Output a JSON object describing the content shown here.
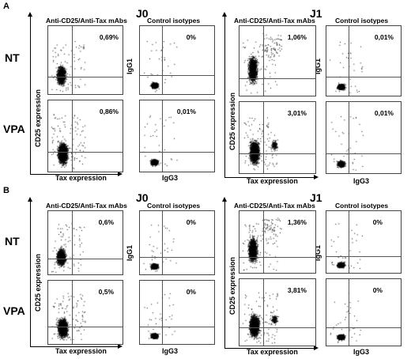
{
  "panels": {
    "A": {
      "letter": "A"
    },
    "B": {
      "letter": "B"
    }
  },
  "days": {
    "j0": "J0",
    "j1": "J1"
  },
  "rows": {
    "nt": "NT",
    "vpa": "VPA"
  },
  "column_headers": {
    "stain": "Anti-CD25/Anti-Tax mAbs",
    "isotype": "Control isotypes"
  },
  "axis_labels": {
    "cd25": "CD25 expression",
    "tax": "Tax expression",
    "igg1": "IgG1",
    "igg3": "IgG3"
  },
  "percentages": {
    "A_J0_NT_stain": "0,69%",
    "A_J0_NT_iso": "0%",
    "A_J0_VPA_stain": "0,86%",
    "A_J0_VPA_iso": "0,01%",
    "A_J1_NT_stain": "1,06%",
    "A_J1_NT_iso": "0,01%",
    "A_J1_VPA_stain": "3,01%",
    "A_J1_VPA_iso": "0,01%",
    "B_J0_NT_stain": "0,6%",
    "B_J0_NT_iso": "0%",
    "B_J0_VPA_stain": "0,5%",
    "B_J0_VPA_iso": "0%",
    "B_J1_NT_stain": "1,36%",
    "B_J1_NT_iso": "0%",
    "B_J1_VPA_stain": "3,81%",
    "B_J1_VPA_iso": "0%"
  },
  "colors": {
    "ink": "#000000",
    "gate_line": "#555555"
  }
}
